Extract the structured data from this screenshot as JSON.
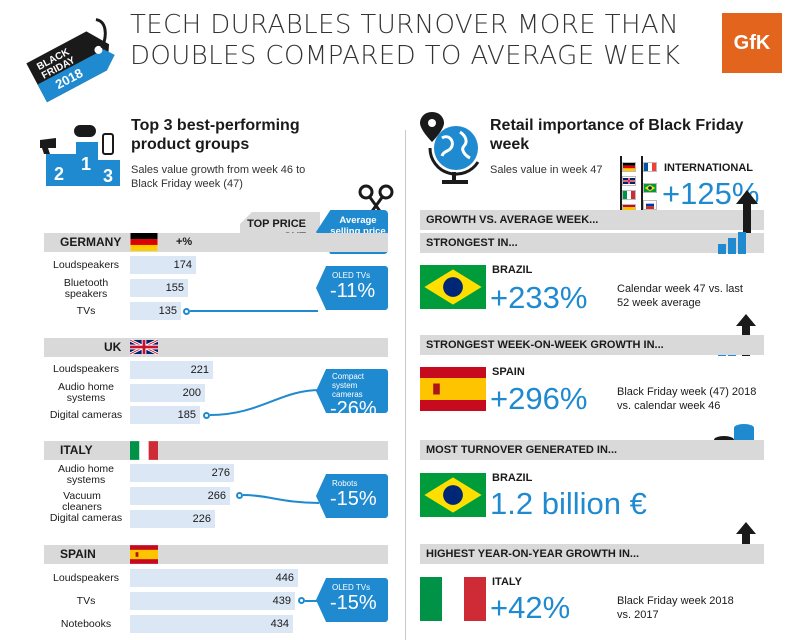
{
  "header": {
    "badge_line1": "BLACK",
    "badge_line2": "FRIDAY",
    "badge_year": "2018",
    "title": "TECH DURABLES TURNOVER MORE THAN DOUBLES COMPARED TO AVERAGE WEEK",
    "logo": "GfK"
  },
  "colors": {
    "accent": "#1f8ad0",
    "bar": "#dbe7f5",
    "band": "#d9d9d9",
    "logo": "#e2641d"
  },
  "left": {
    "rank_digits": [
      "2",
      "1",
      "3"
    ],
    "title": "Top 3 best-performing product groups",
    "subtitle": "Sales value growth from week 46 to Black Friday week (47)",
    "top_price_cut": "TOP PRICE CUT",
    "avg_price_label": "Average selling price",
    "percent_header": "+%",
    "countries": [
      {
        "name": "GERMANY",
        "flag": "flag-germany",
        "rows": [
          {
            "label": "Loudspeakers",
            "value": "174",
            "num": 174
          },
          {
            "label": "Bluetooth speakers",
            "value": "155",
            "num": 155
          },
          {
            "label": "TVs",
            "value": "135",
            "num": 135
          }
        ],
        "price_cut": {
          "product": "OLED TVs",
          "value": "-11%"
        }
      },
      {
        "name": "UK",
        "flag": "flag-uk",
        "rows": [
          {
            "label": "Loudspeakers",
            "value": "221",
            "num": 221
          },
          {
            "label": "Audio home systems",
            "value": "200",
            "num": 200
          },
          {
            "label": "Digital cameras",
            "value": "185",
            "num": 185
          }
        ],
        "price_cut": {
          "product": "Compact system cameras",
          "value": "-26%"
        }
      },
      {
        "name": "ITALY",
        "flag": "flag-italy",
        "rows": [
          {
            "label": "Audio home systems",
            "value": "276",
            "num": 276
          },
          {
            "label": "Vacuum cleaners",
            "value": "266",
            "num": 266
          },
          {
            "label": "Digital cameras",
            "value": "226",
            "num": 226
          }
        ],
        "price_cut": {
          "product": "Robots",
          "value": "-15%"
        }
      },
      {
        "name": "SPAIN",
        "flag": "flag-spain",
        "rows": [
          {
            "label": "Loudspeakers",
            "value": "446",
            "num": 446
          },
          {
            "label": "TVs",
            "value": "439",
            "num": 439
          },
          {
            "label": "Notebooks",
            "value": "434",
            "num": 434
          }
        ],
        "price_cut": {
          "product": "OLED TVs",
          "value": "-15%"
        }
      }
    ]
  },
  "right": {
    "title": "Retail importance of Black Friday week",
    "subtitle": "Sales value in week 47",
    "international_label": "INTERNATIONAL",
    "international_value": "+125%",
    "growth_header": "GROWTH VS. AVERAGE WEEK...",
    "sections": [
      {
        "header": "STRONGEST IN...",
        "country": "BRAZIL",
        "flag": "flag-brazil",
        "value": "+233%",
        "note": "Calendar week 47 vs. last 52 week average"
      },
      {
        "header": "STRONGEST WEEK-ON-WEEK GROWTH IN...",
        "country": "SPAIN",
        "flag": "flag-spain",
        "value": "+296%",
        "note": "Black Friday week (47) 2018 vs. calendar week 46"
      },
      {
        "header": "MOST TURNOVER GENERATED IN...",
        "country": "BRAZIL",
        "flag": "flag-brazil",
        "value": "1.2 billion €",
        "note": ""
      },
      {
        "header": "HIGHEST YEAR-ON-YEAR GROWTH IN...",
        "country": "ITALY",
        "flag": "flag-italy",
        "value": "+42%",
        "note": "Black Friday week 2018 vs. 2017"
      }
    ]
  }
}
